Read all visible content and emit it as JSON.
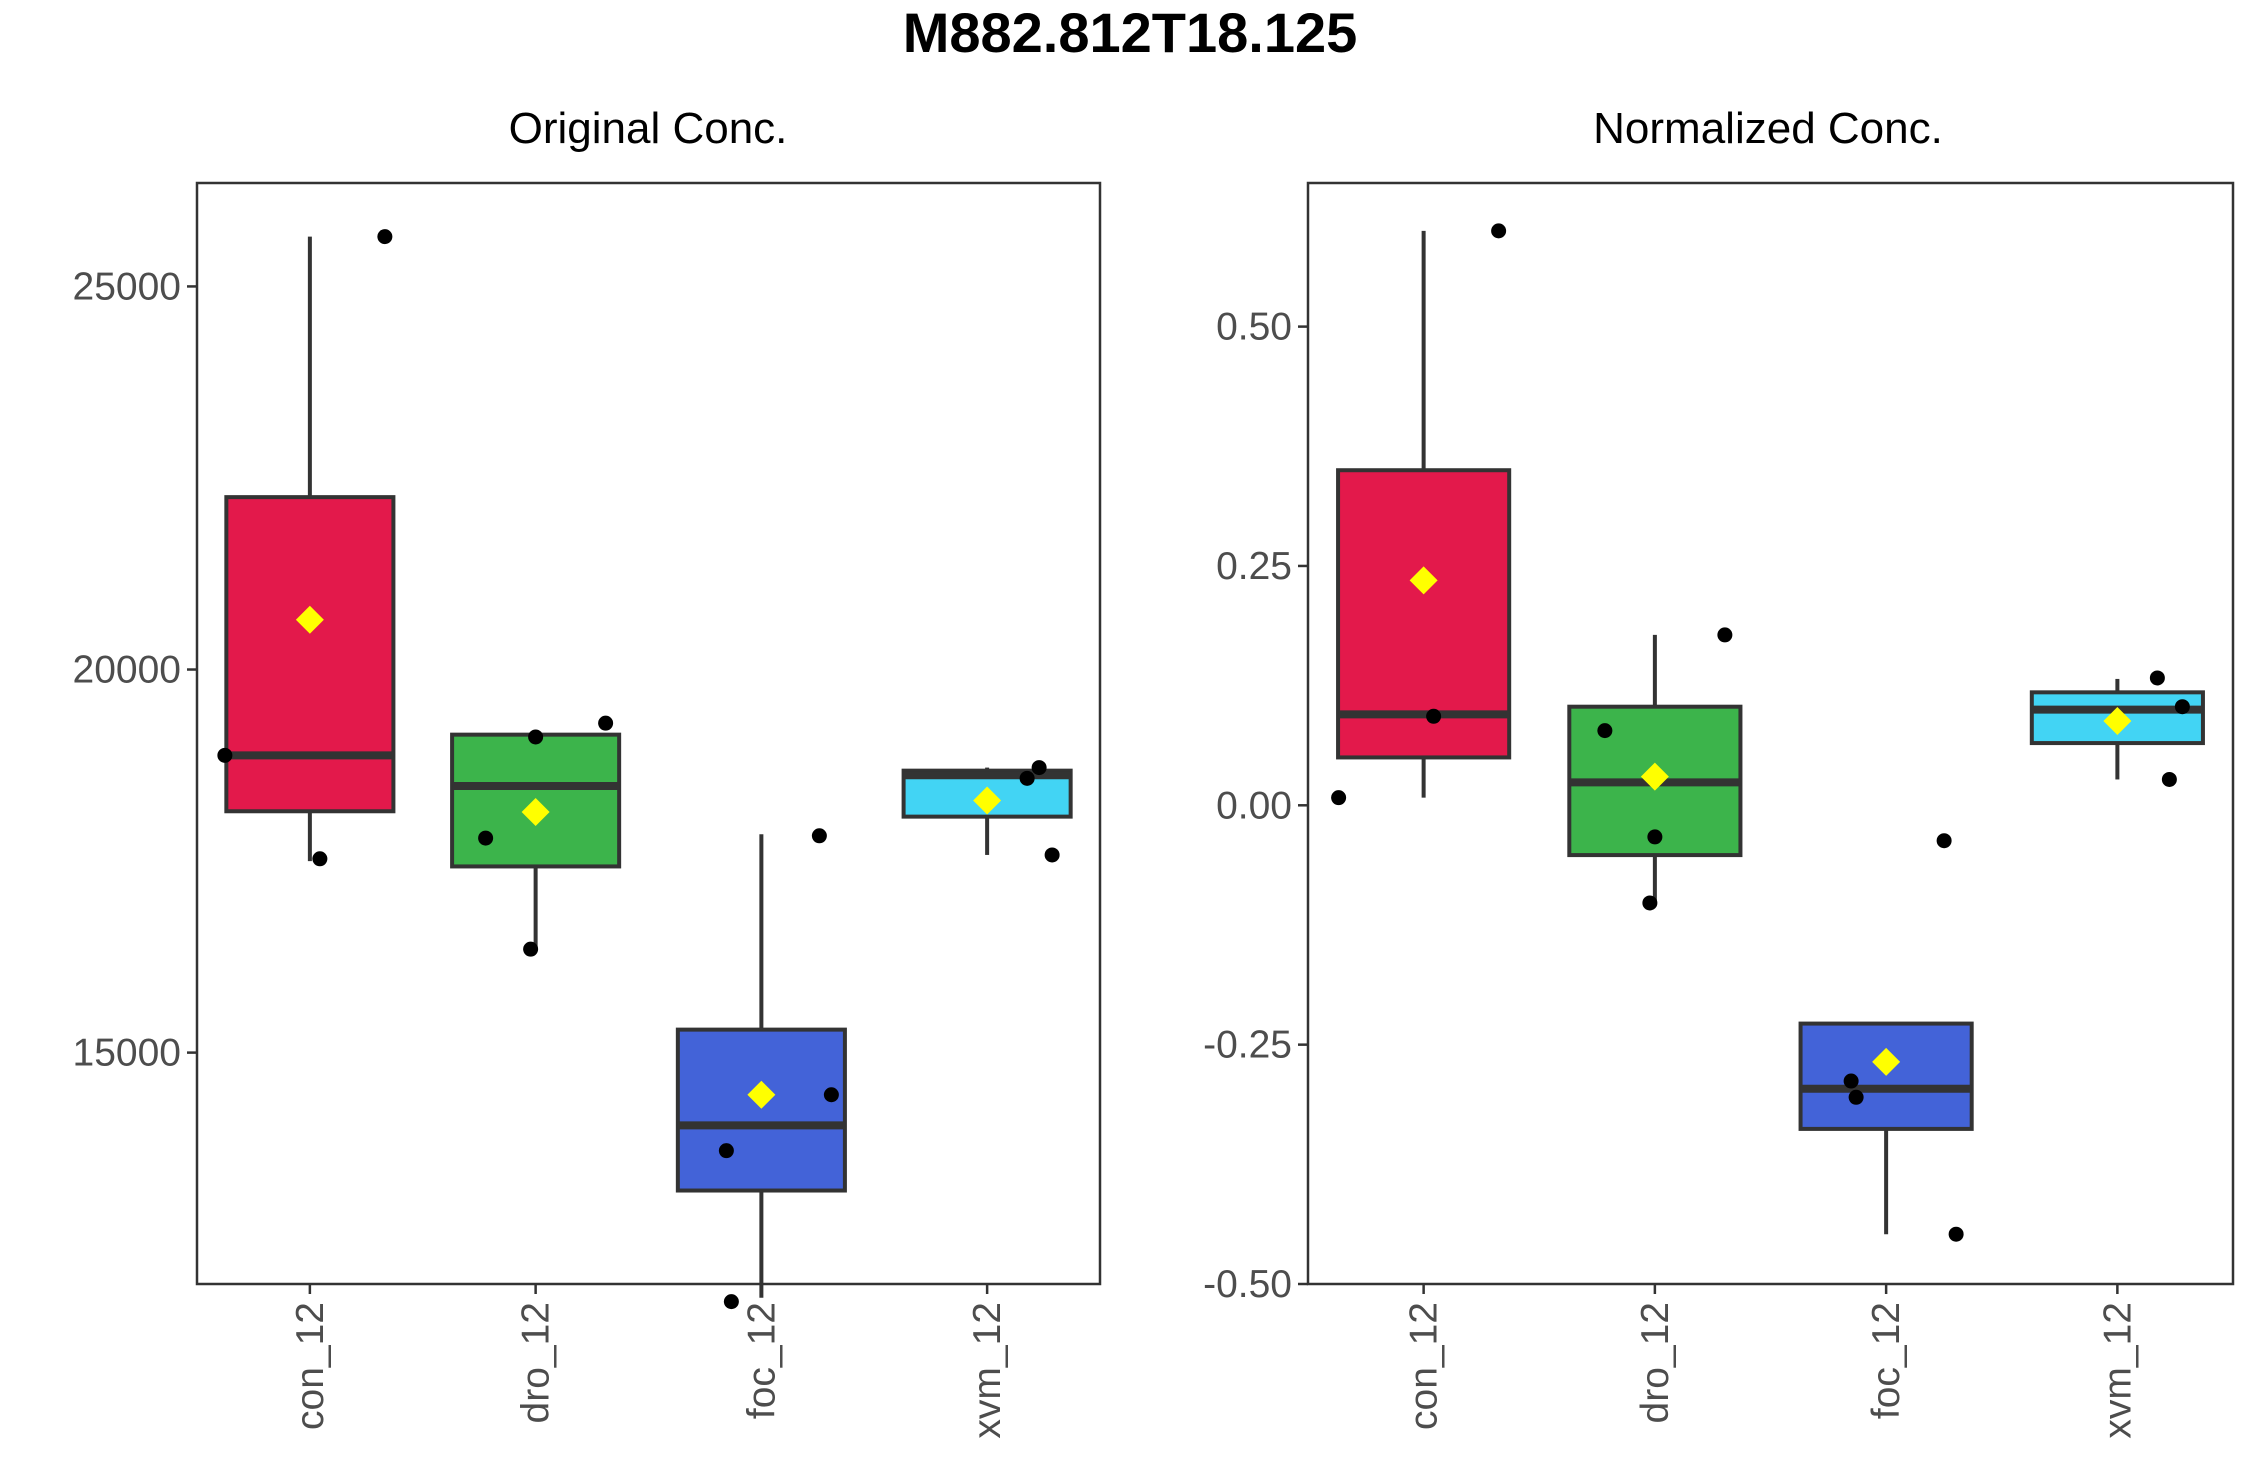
{
  "title": "M882.812T18.125",
  "chart_data": [
    {
      "type": "box",
      "title": "Original Conc.",
      "xlabel": "",
      "ylabel": "",
      "categories": [
        "con_12",
        "dro_12",
        "foc_12",
        "xvm_12"
      ],
      "colors": [
        "#e3194b",
        "#3cb44b",
        "#4363d8",
        "#42d4f4"
      ],
      "ylim": [
        11980,
        26350
      ],
      "yticks": [
        15000,
        20000,
        25000
      ],
      "ytick_labels": [
        "15000",
        "20000",
        "25000"
      ],
      "grid": false,
      "boxes": [
        {
          "category": "con_12",
          "q1": 18150,
          "median": 18880,
          "q3": 22250,
          "whisker_low": 17500,
          "whisker_high": 25650,
          "mean": 20650
        },
        {
          "category": "dro_12",
          "q1": 17430,
          "median": 18480,
          "q3": 19150,
          "whisker_low": 16350,
          "whisker_high": 19150,
          "mean": 18140
        },
        {
          "category": "foc_12",
          "q1": 13200,
          "median": 14050,
          "q3": 15300,
          "whisker_low": 11800,
          "whisker_high": 17850,
          "mean": 14450
        },
        {
          "category": "xvm_12",
          "q1": 18080,
          "median": 18620,
          "q3": 18680,
          "whisker_low": 17580,
          "whisker_high": 18720,
          "mean": 18290
        }
      ],
      "points": [
        {
          "category": "con_12",
          "values": [
            18880,
            17530,
            25650
          ]
        },
        {
          "category": "dro_12",
          "values": [
            17800,
            19120,
            19300,
            16350
          ]
        },
        {
          "category": "foc_12",
          "values": [
            13720,
            11750,
            14450,
            17830
          ]
        },
        {
          "category": "xvm_12",
          "values": [
            18580,
            18720,
            17580
          ]
        }
      ]
    },
    {
      "type": "box",
      "title": "Normalized Conc.",
      "xlabel": "",
      "ylabel": "",
      "categories": [
        "con_12",
        "dro_12",
        "foc_12",
        "xvm_12"
      ],
      "colors": [
        "#e3194b",
        "#3cb44b",
        "#4363d8",
        "#42d4f4"
      ],
      "ylim": [
        -0.5,
        0.65
      ],
      "yticks": [
        -0.5,
        -0.25,
        0,
        0.25,
        0.5
      ],
      "ytick_labels": [
        "-0.50",
        "-0.25",
        "0.00",
        "0.25",
        "0.50"
      ],
      "grid": false,
      "boxes": [
        {
          "category": "con_12",
          "q1": 0.05,
          "median": 0.095,
          "q3": 0.35,
          "whisker_low": 0.008,
          "whisker_high": 0.6,
          "mean": 0.235
        },
        {
          "category": "dro_12",
          "q1": -0.052,
          "median": 0.024,
          "q3": 0.103,
          "whisker_low": -0.1,
          "whisker_high": 0.178,
          "mean": 0.03
        },
        {
          "category": "foc_12",
          "q1": -0.338,
          "median": -0.296,
          "q3": -0.228,
          "whisker_low": -0.448,
          "whisker_high": -0.228,
          "mean": -0.268
        },
        {
          "category": "xvm_12",
          "q1": 0.065,
          "median": 0.1,
          "q3": 0.118,
          "whisker_low": 0.027,
          "whisker_high": 0.132,
          "mean": 0.088
        }
      ],
      "points": [
        {
          "category": "con_12",
          "values": [
            0.008,
            0.093,
            0.6
          ]
        },
        {
          "category": "dro_12",
          "values": [
            0.078,
            -0.033,
            0.178,
            -0.102
          ]
        },
        {
          "category": "foc_12",
          "values": [
            -0.288,
            -0.305,
            -0.448,
            -0.037
          ]
        },
        {
          "category": "xvm_12",
          "values": [
            0.133,
            0.027,
            0.103
          ]
        }
      ]
    }
  ]
}
